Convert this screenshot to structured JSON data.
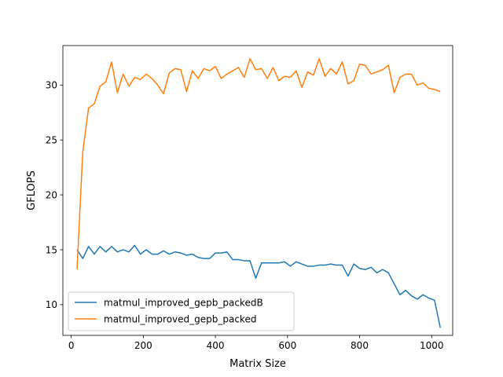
{
  "chart_data": {
    "type": "line",
    "title": "",
    "xlabel": "Matrix Size",
    "ylabel": "GFLOPS",
    "xlim": [
      -23.2,
      1058.4
    ],
    "ylim": [
      7.2,
      33.6
    ],
    "xticks": [
      0,
      200,
      400,
      600,
      800,
      1000
    ],
    "yticks": [
      10,
      15,
      20,
      25,
      30
    ],
    "grid": false,
    "legend_position": "lower-left",
    "x": [
      16,
      32,
      48,
      64,
      80,
      96,
      112,
      128,
      144,
      160,
      176,
      192,
      208,
      224,
      240,
      256,
      272,
      288,
      304,
      320,
      336,
      352,
      368,
      384,
      400,
      416,
      432,
      448,
      464,
      480,
      496,
      512,
      528,
      544,
      560,
      576,
      592,
      608,
      624,
      640,
      656,
      672,
      688,
      704,
      720,
      736,
      752,
      768,
      784,
      800,
      816,
      832,
      848,
      864,
      880,
      896,
      912,
      928,
      944,
      960,
      976,
      992,
      1008,
      1024
    ],
    "series": [
      {
        "name": "matmul_improved_gepb_packedB",
        "color": "#1f77b4",
        "values": [
          15.0,
          14.2,
          15.3,
          14.6,
          15.3,
          14.8,
          15.3,
          14.8,
          15.0,
          14.8,
          15.4,
          14.6,
          15.0,
          14.6,
          14.6,
          14.9,
          14.6,
          14.8,
          14.7,
          14.5,
          14.6,
          14.3,
          14.2,
          14.2,
          14.7,
          14.7,
          14.8,
          14.1,
          14.1,
          14.0,
          14.0,
          12.4,
          13.8,
          13.8,
          13.8,
          13.8,
          13.9,
          13.5,
          13.9,
          13.7,
          13.5,
          13.5,
          13.6,
          13.6,
          13.7,
          13.6,
          13.6,
          12.6,
          13.7,
          13.3,
          13.2,
          13.4,
          12.9,
          13.2,
          12.9,
          11.9,
          10.9,
          11.3,
          10.8,
          10.5,
          10.9,
          10.6,
          10.4,
          7.9
        ]
      },
      {
        "name": "matmul_improved_gepb_packed",
        "color": "#ff7f0e",
        "values": [
          13.2,
          23.9,
          27.9,
          28.3,
          29.9,
          30.3,
          32.1,
          29.3,
          31.0,
          29.9,
          30.7,
          30.5,
          31.0,
          30.6,
          30.0,
          29.2,
          31.1,
          31.5,
          31.4,
          29.4,
          31.3,
          30.6,
          31.5,
          31.3,
          31.7,
          30.6,
          31.0,
          31.3,
          31.6,
          30.7,
          32.4,
          31.4,
          31.5,
          30.6,
          31.6,
          30.4,
          30.8,
          30.7,
          31.3,
          29.8,
          31.2,
          30.9,
          32.4,
          30.8,
          31.5,
          31.0,
          32.1,
          30.1,
          30.4,
          31.9,
          31.8,
          31.0,
          31.2,
          31.4,
          31.8,
          29.3,
          30.7,
          31.0,
          31.0,
          30.0,
          30.2,
          29.7,
          29.6,
          29.4
        ]
      }
    ]
  }
}
